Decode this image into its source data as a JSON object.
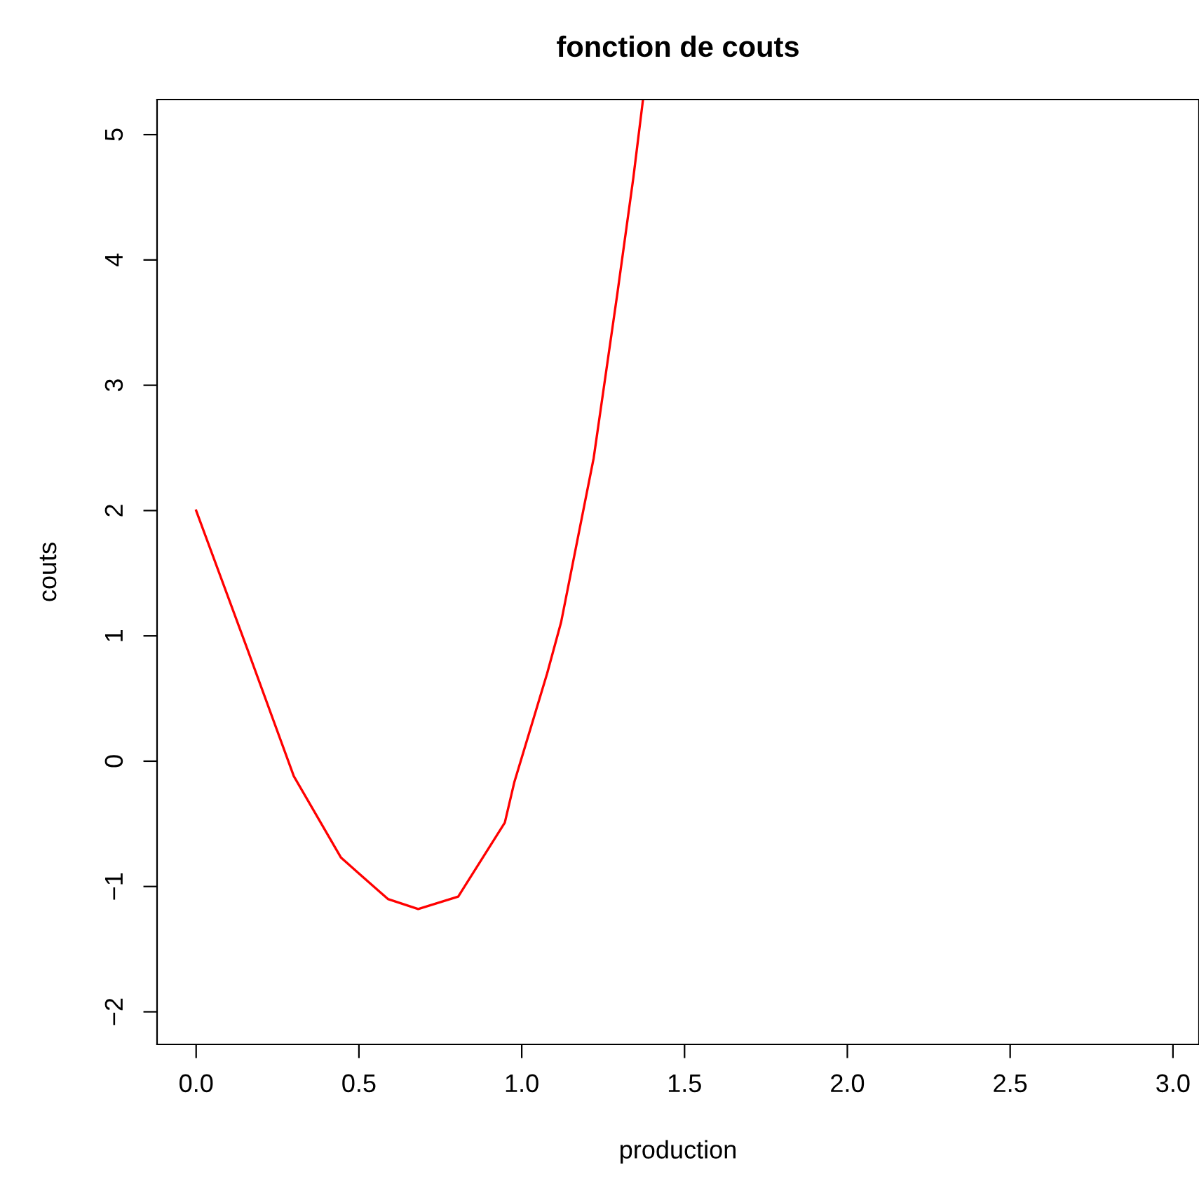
{
  "chart_data": {
    "type": "line",
    "title": "fonction de couts",
    "xlabel": "production",
    "ylabel": "couts",
    "series": [
      {
        "color": "#ff0000",
        "x": [
          0,
          0.158,
          0.3,
          0.445,
          0.589,
          0.682,
          0.805,
          0.948,
          0.977,
          1.078,
          1.121,
          1.221,
          1.293,
          1.343,
          1.372
        ],
        "values": [
          2,
          0.89,
          -0.12,
          -0.77,
          -1.1,
          -1.18,
          -1.08,
          -0.49,
          -0.17,
          0.7,
          1.11,
          2.42,
          3.72,
          4.66,
          5.27
        ]
      }
    ],
    "xlim": [
      -0.12,
      3.08
    ],
    "ylim": [
      -2.26,
      5.28
    ],
    "xticks": [
      {
        "value": 0,
        "label": "0.0"
      },
      0.5,
      {
        "value": 1,
        "label": "1.0"
      },
      1.5,
      {
        "value": 2,
        "label": "2.0"
      },
      2.5,
      {
        "value": 3,
        "label": "3.0"
      }
    ],
    "yticks": [
      {
        "value": -2,
        "label": "−2"
      },
      {
        "value": -1,
        "label": "−1"
      },
      0,
      1,
      2,
      3,
      4,
      5
    ],
    "grid": false,
    "legend": false,
    "marker": "none",
    "line_style": "solid"
  }
}
